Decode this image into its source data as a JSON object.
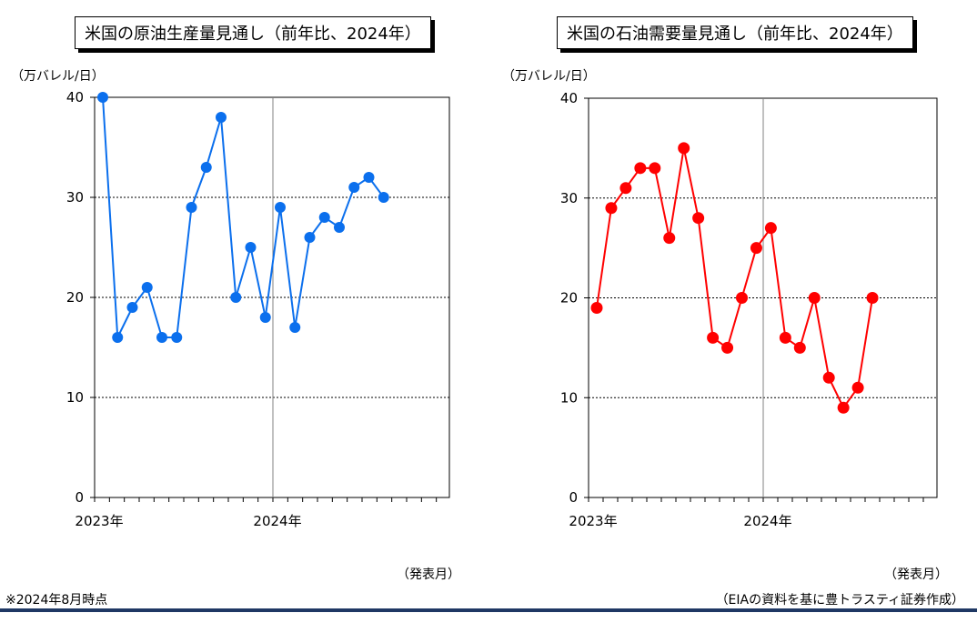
{
  "notes": {
    "left": "※2024年8月時点",
    "right": "（EIAの資料を基に豊トラスティ証券作成）"
  },
  "colors": {
    "left_series": "#0b6fed",
    "right_series": "#ff0000"
  },
  "chart_data": [
    {
      "type": "line",
      "title": "米国の原油生産量見通し（前年比、2024年）",
      "ylabel": "（万バレル/日）",
      "xlabel": "（発表月）",
      "ylim": [
        0,
        40
      ],
      "yticks": [
        0,
        10,
        20,
        30,
        40
      ],
      "x_tick_labels": [
        "2023年",
        "2024年"
      ],
      "grid": "horizontal dotted at 10, 20, 30; vertical line at 2024年",
      "series": [
        {
          "values": [
            40,
            16,
            19,
            21,
            16,
            16,
            29,
            33,
            38,
            20,
            25,
            18,
            29,
            17,
            26,
            28,
            27,
            31,
            32,
            30
          ]
        }
      ]
    },
    {
      "type": "line",
      "title": "米国の石油需要量見通し（前年比、2024年）",
      "ylabel": "（万バレル/日）",
      "xlabel": "（発表月）",
      "ylim": [
        0,
        40
      ],
      "yticks": [
        0,
        10,
        20,
        30,
        40
      ],
      "x_tick_labels": [
        "2023年",
        "2024年"
      ],
      "grid": "horizontal dotted at 10, 20, 30; vertical line at 2024年",
      "series": [
        {
          "values": [
            19,
            29,
            31,
            33,
            33,
            26,
            35,
            28,
            16,
            15,
            20,
            25,
            27,
            16,
            15,
            20,
            12,
            9,
            11,
            20
          ]
        }
      ]
    }
  ]
}
